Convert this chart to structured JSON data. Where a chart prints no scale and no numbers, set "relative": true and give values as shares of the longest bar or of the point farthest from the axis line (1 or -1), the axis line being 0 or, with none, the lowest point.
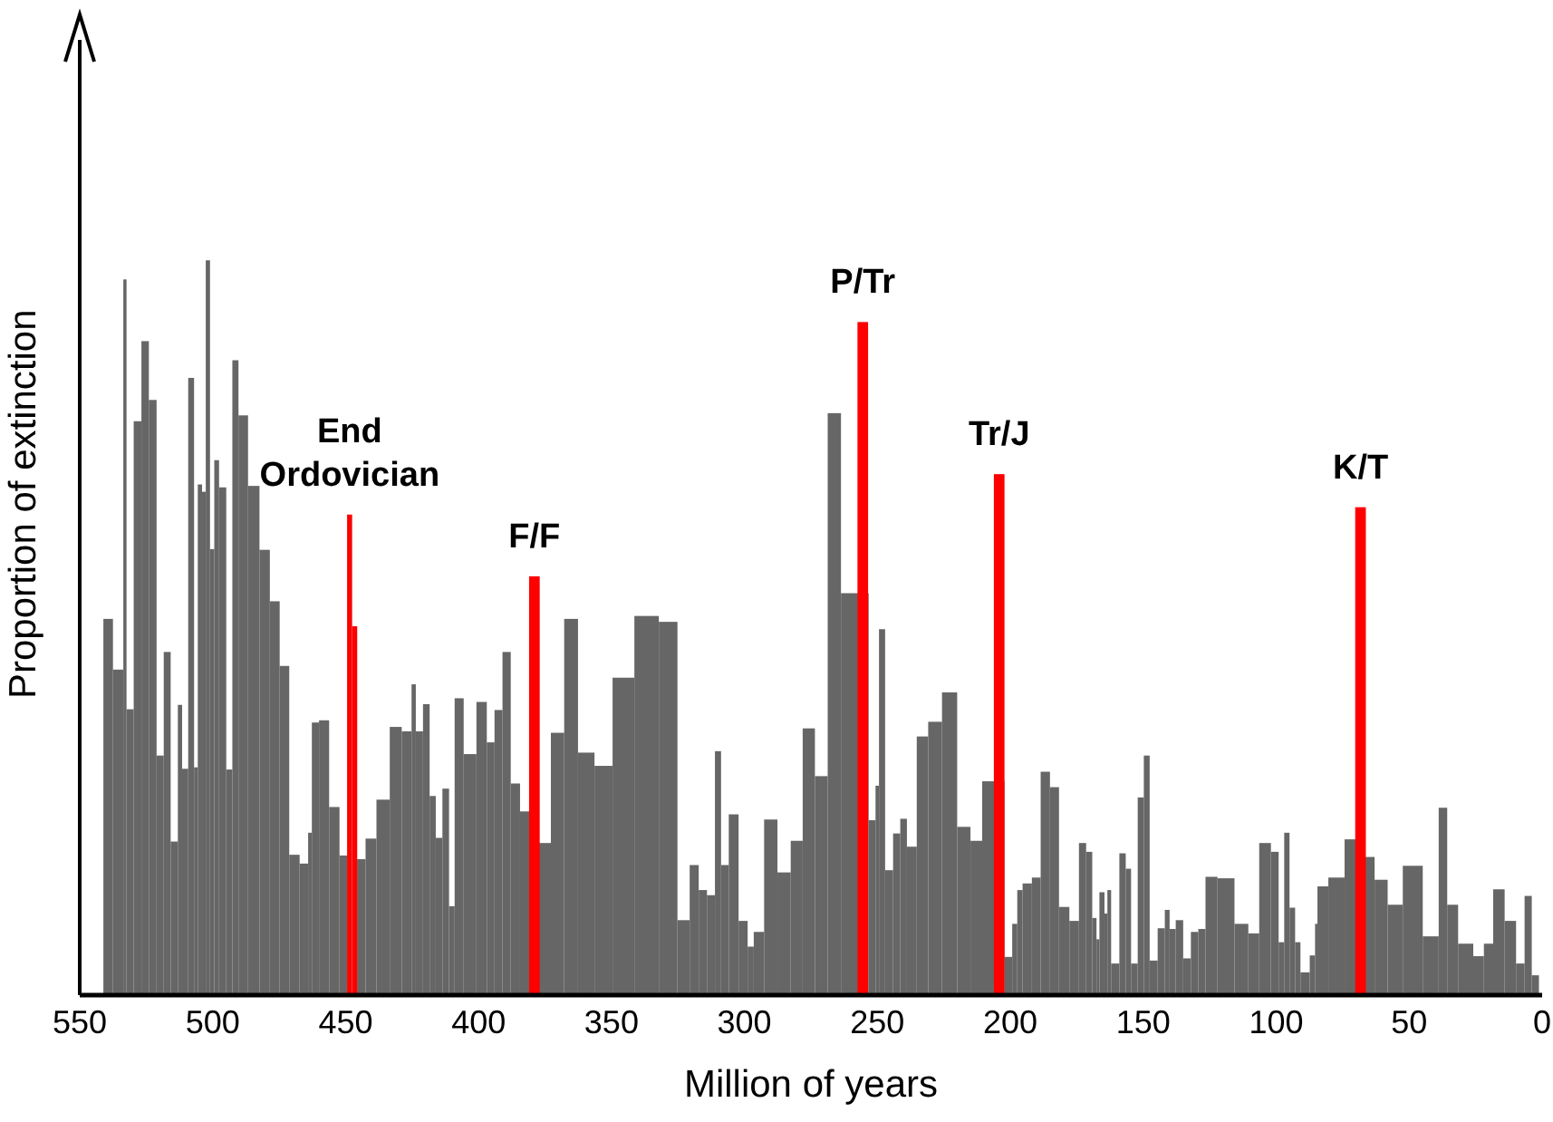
{
  "chart_data": {
    "type": "histogram",
    "xlabel": "Million of years",
    "ylabel": "Proportion of extinction",
    "relative": true,
    "xlim": [
      550,
      0
    ],
    "xticks": [
      550,
      500,
      450,
      400,
      350,
      300,
      250,
      200,
      150,
      100,
      50,
      0
    ],
    "bins": [
      541.1,
      537.5,
      533.6,
      532.4,
      529.7,
      526.8,
      524.0,
      521.1,
      518.4,
      515.8,
      513.1,
      511.5,
      509.2,
      507.0,
      505.6,
      504.0,
      502.6,
      501.0,
      499.4,
      497.6,
      494.9,
      492.6,
      490.3,
      486.7,
      482.4,
      478.5,
      474.8,
      471.2,
      467.3,
      464.1,
      462.7,
      460.0,
      456.2,
      452.3,
      449.4,
      445.7,
      442.5,
      438.4,
      433.4,
      428.9,
      425.2,
      423.6,
      420.9,
      418.4,
      416.1,
      413.6,
      411.1,
      409.0,
      405.6,
      400.8,
      396.9,
      394.0,
      391.0,
      387.9,
      384.4,
      380.8,
      372.8,
      367.8,
      362.6,
      356.4,
      349.6,
      341.4,
      332.2,
      325.2,
      320.6,
      317.2,
      314.1,
      311.1,
      308.8,
      305.9,
      302.2,
      298.8,
      296.5,
      292.6,
      287.6,
      282.6,
      278.1,
      273.5,
      268.7,
      263.7,
      253.3,
      250.7,
      249.4,
      247.1,
      244.1,
      241.4,
      238.9,
      235.2,
      230.9,
      225.7,
      220.0,
      215.0,
      210.6,
      202.2,
      199.3,
      197.4,
      195.4,
      191.9,
      188.6,
      185.1,
      181.7,
      177.8,
      174.2,
      171.5,
      169.2,
      167.6,
      166.5,
      164.6,
      163.5,
      162.1,
      159.0,
      156.6,
      154.6,
      152.1,
      149.8,
      147.6,
      144.6,
      141.9,
      140.1,
      137.8,
      135.0,
      132.1,
      129.3,
      126.6,
      122.1,
      115.7,
      110.5,
      106.4,
      102.0,
      99.1,
      97.0,
      95.0,
      92.9,
      90.9,
      87.4,
      85.4,
      84.5,
      80.4,
      74.3,
      66.9,
      63.0,
      58.1,
      52.4,
      44.9,
      38.9,
      35.7,
      31.6,
      25.9,
      21.9,
      18.4,
      14.1,
      9.8,
      6.6,
      3.9,
      1.2
    ],
    "series": [
      {
        "color": "#666666",
        "values": [
          0.512,
          0.443,
          0.974,
          0.389,
          0.781,
          0.89,
          0.81,
          0.326,
          0.467,
          0.209,
          0.395,
          0.308,
          0.84,
          0.31,
          0.695,
          0.685,
          1.0,
          0.607,
          0.728,
          0.691,
          0.307,
          0.864,
          0.789,
          0.693,
          0.606,
          0.536,
          0.448,
          0.191,
          0.179,
          0.221,
          0.371,
          0.374,
          0.256,
          0.19,
          null,
          0.185,
          0.213,
          0.266,
          0.365,
          0.359,
          0.423,
          0.359,
          0.396,
          0.271,
          0.214,
          0.281,
          0.121,
          0.404,
          0.328,
          0.399,
          0.344,
          0.388,
          0.467,
          0.288,
          0.25,
          0.207,
          0.357,
          0.512,
          0.33,
          0.312,
          0.432,
          0.516,
          0.508,
          0.102,
          0.177,
          0.143,
          0.136,
          0.332,
          0.177,
          0.246,
          0.101,
          0.066,
          0.086,
          0.239,
          0.167,
          0.21,
          0.363,
          0.298,
          0.792,
          0.547,
          0.238,
          0.285,
          0.498,
          0.17,
          0.22,
          0.24,
          0.202,
          0.352,
          0.372,
          0.412,
          0.229,
          0.21,
          0.291,
          0.052,
          0.097,
          0.143,
          0.152,
          0.16,
          0.304,
          0.283,
          0.12,
          0.101,
          0.207,
          0.195,
          0.105,
          0.076,
          0.14,
          0.111,
          0.143,
          0.043,
          0.193,
          0.172,
          0.043,
          0.269,
          0.326,
          0.047,
          0.091,
          0.116,
          0.09,
          0.102,
          0.05,
          0.086,
          0.09,
          0.161,
          0.159,
          0.097,
          0.084,
          0.207,
          0.195,
          0.072,
          0.221,
          0.119,
          0.072,
          0.031,
          0.054,
          0.097,
          0.148,
          0.16,
          0.212,
          0.188,
          0.157,
          0.123,
          0.176,
          0.08,
          0.255,
          0.123,
          0.07,
          0.053,
          0.07,
          0.144,
          0.101,
          0.043,
          0.135,
          0.027
        ]
      },
      {
        "type": "bar",
        "color": "#ff0000",
        "x": [
          448.5,
          446.6,
          379.0,
          255.5,
          204.2,
          68.3
        ],
        "values": [
          0.654,
          0.502,
          0.57,
          0.916,
          0.709,
          0.664
        ]
      }
    ],
    "annotations": [
      {
        "text": "End Ordovician",
        "x": 448.5,
        "y": 0.654
      },
      {
        "text": "F/F",
        "x": 379.0,
        "y": 0.57
      },
      {
        "text": "P/Tr",
        "x": 255.5,
        "y": 0.916
      },
      {
        "text": "Tr/J",
        "x": 204.2,
        "y": 0.709
      },
      {
        "text": "K/T",
        "x": 68.3,
        "y": 0.664
      }
    ]
  }
}
